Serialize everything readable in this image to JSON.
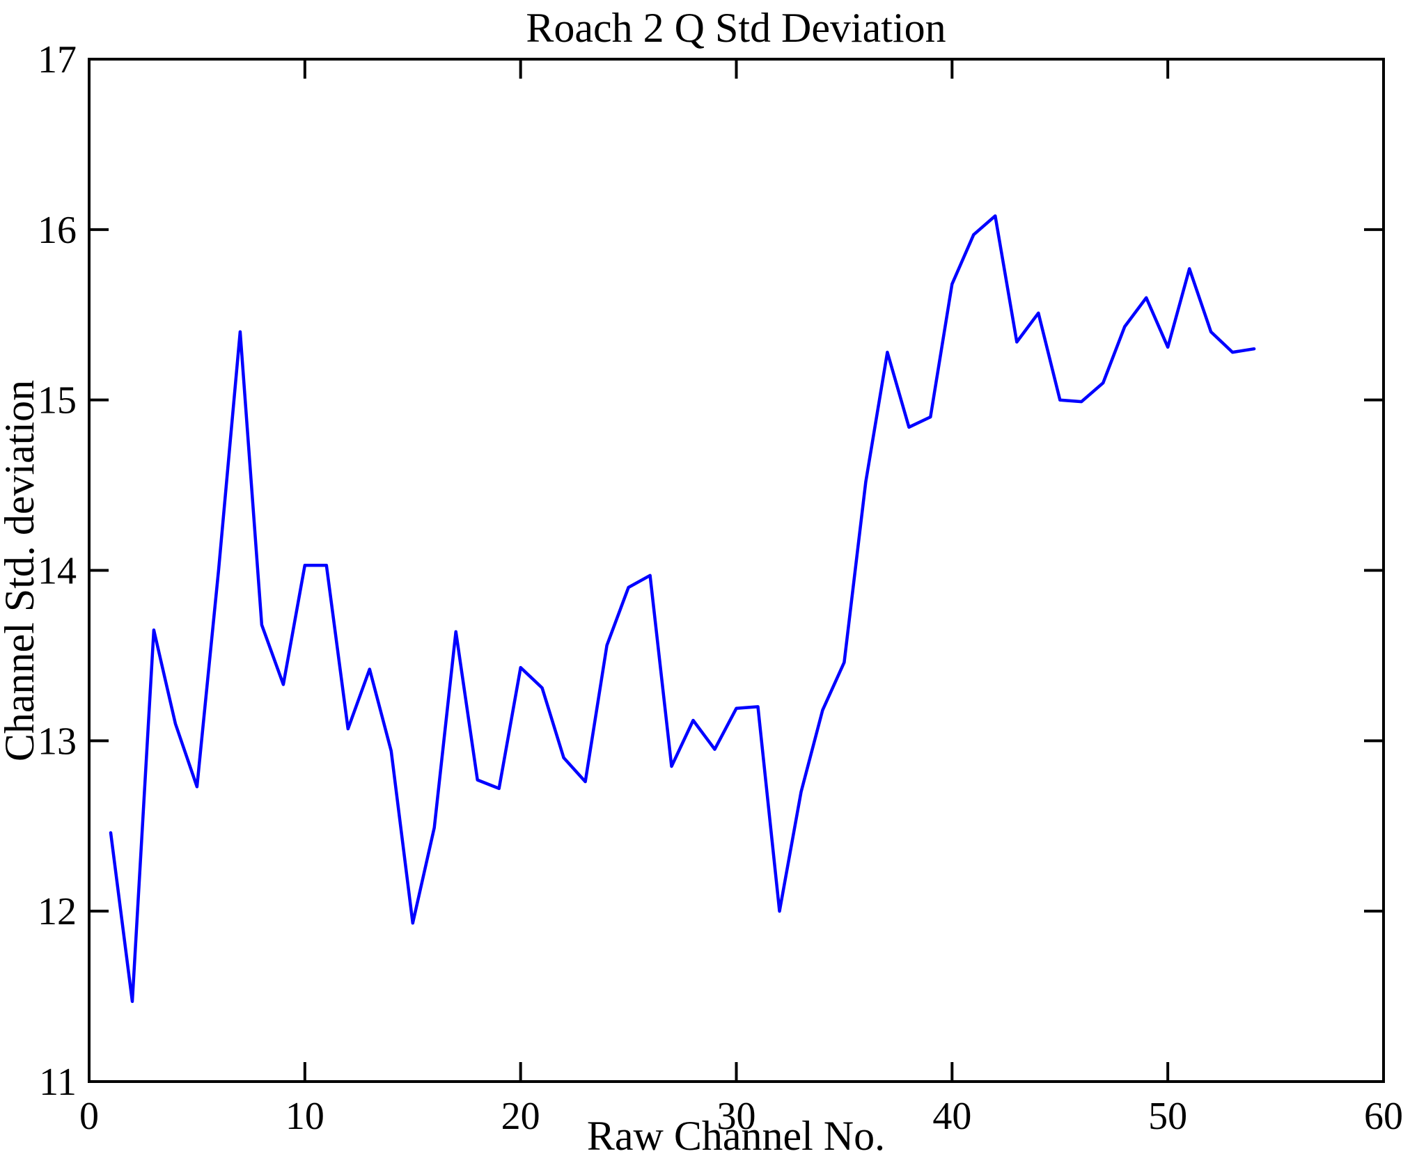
{
  "title": "Roach 2 Q Std Deviation",
  "chart_data": {
    "type": "line",
    "title": "Roach 2 Q Std Deviation",
    "xlabel": "Raw Channel No.",
    "ylabel": "Channel Std. deviation",
    "xlim": [
      0,
      60
    ],
    "ylim": [
      11,
      17
    ],
    "x_ticks": [
      0,
      10,
      20,
      30,
      40,
      50,
      60
    ],
    "y_ticks": [
      11,
      12,
      13,
      14,
      15,
      16,
      17
    ],
    "grid": false,
    "legend": null,
    "line_color": "#0000ff",
    "axis_color": "#000000",
    "x": [
      1,
      2,
      3,
      4,
      5,
      6,
      7,
      8,
      9,
      10,
      11,
      12,
      13,
      14,
      15,
      16,
      17,
      18,
      19,
      20,
      21,
      22,
      23,
      24,
      25,
      26,
      27,
      28,
      29,
      30,
      31,
      32,
      33,
      34,
      35,
      36,
      37,
      38,
      39,
      40,
      41,
      42,
      43,
      44,
      45,
      46,
      47,
      48,
      49,
      50,
      51,
      52,
      53,
      54
    ],
    "y": [
      12.46,
      11.47,
      13.65,
      13.1,
      12.73,
      14.0,
      15.4,
      13.68,
      13.33,
      14.03,
      14.03,
      13.07,
      13.42,
      12.94,
      11.93,
      12.49,
      13.64,
      12.77,
      12.72,
      13.43,
      13.31,
      12.9,
      12.76,
      13.56,
      13.9,
      13.97,
      12.85,
      13.12,
      12.95,
      13.19,
      13.2,
      12.0,
      12.7,
      13.18,
      13.46,
      14.52,
      15.28,
      14.84,
      14.9,
      15.68,
      15.97,
      16.08,
      15.34,
      15.51,
      15.0,
      14.99,
      15.1,
      15.43,
      15.6,
      15.31,
      15.77,
      15.4,
      15.28,
      15.3
    ]
  }
}
